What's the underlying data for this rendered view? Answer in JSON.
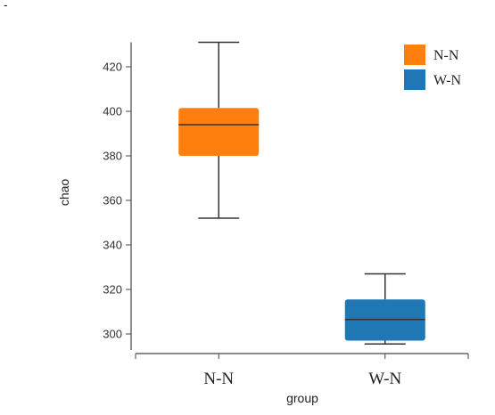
{
  "corner_mark": "-",
  "chart_data": {
    "type": "box",
    "title": "",
    "xlabel": "group",
    "ylabel": "chao",
    "ylim": [
      295,
      431
    ],
    "yticks": [
      300,
      320,
      340,
      360,
      380,
      400,
      420
    ],
    "categories": [
      "N-N",
      "W-N"
    ],
    "series": [
      {
        "name": "N-N",
        "color": "#ff7f0e",
        "min": 352,
        "q1": 380,
        "median": 394,
        "q3": 401.5,
        "max": 431
      },
      {
        "name": "W-N",
        "color": "#1f77b4",
        "min": 295.5,
        "q1": 297,
        "median": 306.5,
        "q3": 315.5,
        "max": 327
      }
    ],
    "legend": {
      "position": "top-right",
      "entries": [
        "N-N",
        "W-N"
      ]
    },
    "grid": false
  }
}
